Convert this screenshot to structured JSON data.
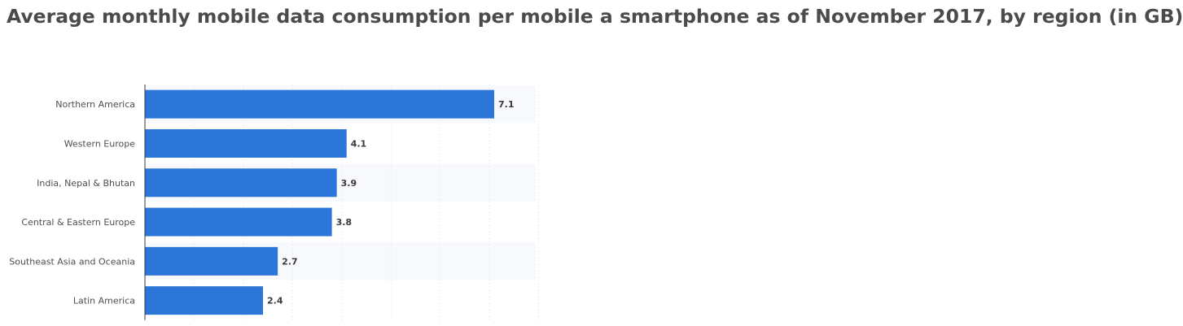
{
  "chart_data": {
    "type": "bar",
    "orientation": "horizontal",
    "title": "Average monthly mobile data consumption per mobile a smartphone as of November 2017, by region (in GB)",
    "categories": [
      "Northern America",
      "Western Europe",
      "India, Nepal & Bhutan",
      "Central & Eastern Europe",
      "Southeast Asia and Oceania",
      "Latin America"
    ],
    "values": [
      7.1,
      4.1,
      3.9,
      3.8,
      2.7,
      2.4
    ],
    "value_labels": [
      "7.1",
      "4.1",
      "3.9",
      "3.8",
      "2.7",
      "2.4"
    ],
    "xlim": [
      0,
      8
    ],
    "grid": true,
    "legend": "none",
    "bar_color": "#2c75d9"
  }
}
